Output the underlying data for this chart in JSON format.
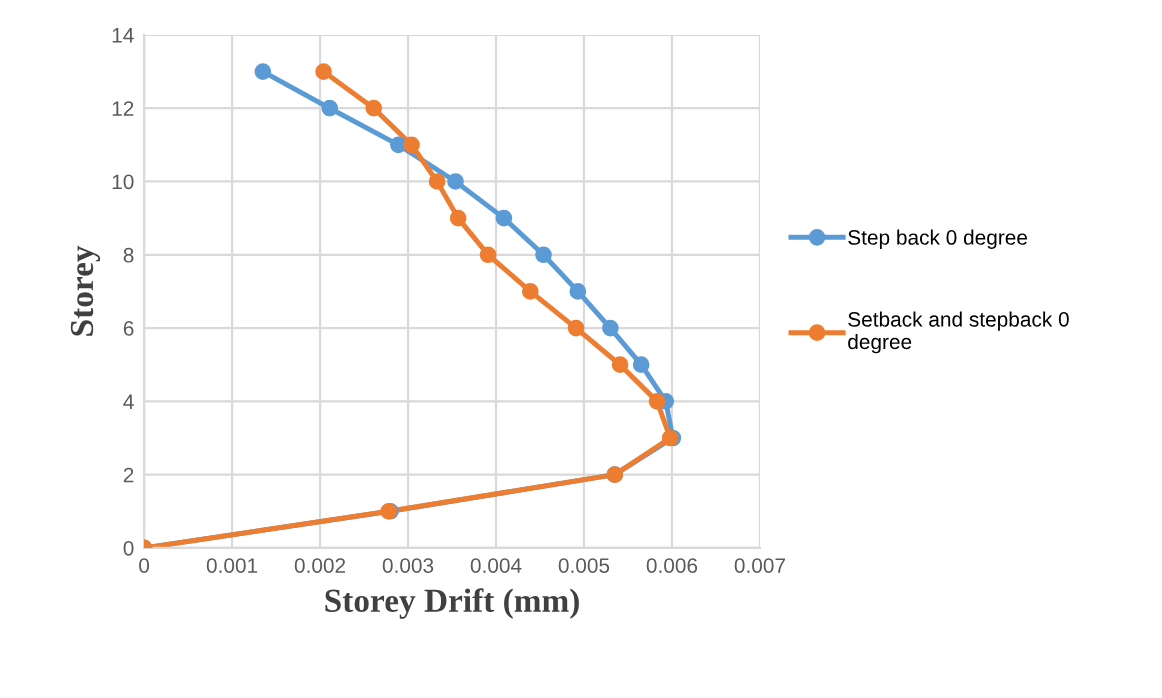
{
  "chart_data": {
    "type": "line",
    "xlabel": "Storey Drift (mm)",
    "ylabel": "Storey",
    "xlim": [
      0,
      0.007
    ],
    "xticks": [
      0,
      0.001,
      0.002,
      0.003,
      0.004,
      0.005,
      0.006,
      0.007
    ],
    "ylim": [
      0,
      14
    ],
    "yticks": [
      0,
      2,
      4,
      6,
      8,
      10,
      12,
      14
    ],
    "grid": true,
    "legend": "right",
    "marker": "circle",
    "line_style": "solid",
    "series": [
      {
        "name": "Step back 0 degree",
        "color": "#5b9bd5",
        "x": [
          0,
          0.0028,
          0.00535,
          0.00601,
          0.00593,
          0.00565,
          0.0053,
          0.00493,
          0.00454,
          0.00409,
          0.00354,
          0.00289,
          0.00211,
          0.00135
        ],
        "values": [
          0,
          1,
          2,
          3,
          4,
          5,
          6,
          7,
          8,
          9,
          10,
          11,
          12,
          13
        ]
      },
      {
        "name": "Setback and stepback 0 degree",
        "color": "#ed7d31",
        "x": [
          0,
          0.00278,
          0.00535,
          0.00598,
          0.00583,
          0.00541,
          0.00491,
          0.00439,
          0.00391,
          0.00357,
          0.00333,
          0.00304,
          0.00261,
          0.00204
        ],
        "values": [
          0,
          1,
          2,
          3,
          4,
          5,
          6,
          7,
          8,
          9,
          10,
          11,
          12,
          13
        ]
      }
    ]
  }
}
